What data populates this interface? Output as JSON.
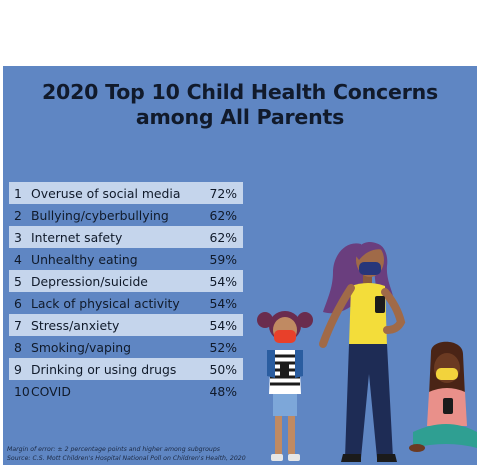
{
  "chart_data": {
    "type": "table",
    "title_line1": "2020 Top 10 Child Health Concerns",
    "title_line2": "among All Parents",
    "rows": [
      {
        "rank": "1",
        "label": "Overuse of social media",
        "value": "72%"
      },
      {
        "rank": "2",
        "label": "Bullying/cyberbullying",
        "value": "62%"
      },
      {
        "rank": "3",
        "label": "Internet safety",
        "value": "62%"
      },
      {
        "rank": "4",
        "label": "Unhealthy eating",
        "value": "59%"
      },
      {
        "rank": "5",
        "label": "Depression/suicide",
        "value": "54%"
      },
      {
        "rank": "6",
        "label": "Lack of physical activity",
        "value": "54%"
      },
      {
        "rank": "7",
        "label": "Stress/anxiety",
        "value": "54%"
      },
      {
        "rank": "8",
        "label": "Smoking/vaping",
        "value": "52%"
      },
      {
        "rank": "9",
        "label": "Drinking or using drugs",
        "value": "50%"
      },
      {
        "rank": "10",
        "label": "COVID",
        "value": "48%"
      }
    ],
    "note_margin": "Margin of error: ± 2 percentage points and higher among subgroups",
    "note_source": "Source: C.S. Mott Children's Hospital National Poll on Children's Health, 2020"
  },
  "colors": {
    "panel_bg": "#5f86c3",
    "row_shade": "#c5d5ec",
    "title_text": "#111a2b"
  },
  "illustration": {
    "icons": [
      "mother-figure-icon",
      "girl-with-pigtails-icon",
      "sitting-child-icon",
      "smartphone-icon",
      "face-mask-icon"
    ]
  }
}
